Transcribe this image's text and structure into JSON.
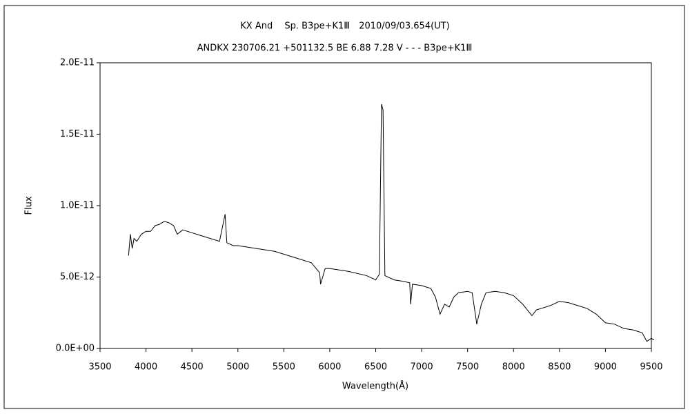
{
  "chart_data": {
    "type": "line",
    "title": "KX And　 Sp. B3pe+K1Ⅲ　2010/09/03.654(UT)",
    "subtitle": "ANDKX 230706.21 +501132.5 BE 6.88 7.28 V - - - B3pe+K1Ⅲ",
    "x_label": "Wavelength(Å)",
    "y_label": "Flux",
    "xlim": [
      3500,
      9500
    ],
    "xticks": [
      3500,
      4000,
      4500,
      5000,
      5500,
      6000,
      6500,
      7000,
      7500,
      8000,
      8500,
      9000,
      9500
    ],
    "ylim": [
      0,
      2e-11
    ],
    "yticks": [
      {
        "value": 0,
        "label": "0.0E+00"
      },
      {
        "value": 5e-12,
        "label": "5.0E-12"
      },
      {
        "value": 1e-11,
        "label": "1.0E-11"
      },
      {
        "value": 1.5e-11,
        "label": "1.5E-11"
      },
      {
        "value": 2e-11,
        "label": "2.0E-11"
      }
    ],
    "grid": false,
    "series": [
      {
        "color": "#000000",
        "x": [
          3810,
          3830,
          3850,
          3870,
          3900,
          3950,
          4000,
          4050,
          4100,
          4150,
          4200,
          4250,
          4300,
          4340,
          4400,
          4500,
          4600,
          4700,
          4800,
          4861,
          4880,
          4950,
          5000,
          5200,
          5400,
          5600,
          5800,
          5890,
          5900,
          5950,
          6000,
          6200,
          6400,
          6500,
          6540,
          6563,
          6580,
          6600,
          6700,
          6800,
          6870,
          6880,
          6900,
          7000,
          7100,
          7150,
          7200,
          7250,
          7300,
          7350,
          7400,
          7500,
          7550,
          7600,
          7650,
          7700,
          7800,
          7900,
          8000,
          8100,
          8200,
          8250,
          8300,
          8400,
          8500,
          8600,
          8700,
          8800,
          8900,
          9000,
          9100,
          9200,
          9300,
          9400,
          9450,
          9500,
          9530
        ],
        "values": [
          6.5e-12,
          8e-12,
          7e-12,
          7.7e-12,
          7.5e-12,
          8e-12,
          8.2e-12,
          8.2e-12,
          8.6e-12,
          8.7e-12,
          8.9e-12,
          8.8e-12,
          8.6e-12,
          8e-12,
          8.3e-12,
          8.1e-12,
          7.9e-12,
          7.7e-12,
          7.5e-12,
          9.4e-12,
          7.4e-12,
          7.2e-12,
          7.2e-12,
          7e-12,
          6.8e-12,
          6.4e-12,
          6e-12,
          5.3e-12,
          4.5e-12,
          5.6e-12,
          5.6e-12,
          5.4e-12,
          5.1e-12,
          4.8e-12,
          5.2e-12,
          1.71e-11,
          1.67e-11,
          5.1e-12,
          4.8e-12,
          4.7e-12,
          4.6e-12,
          3.1e-12,
          4.5e-12,
          4.4e-12,
          4.2e-12,
          3.6e-12,
          2.4e-12,
          3.1e-12,
          2.9e-12,
          3.6e-12,
          3.9e-12,
          4e-12,
          3.9e-12,
          1.7e-12,
          3.1e-12,
          3.9e-12,
          4e-12,
          3.9e-12,
          3.7e-12,
          3.1e-12,
          2.3e-12,
          2.7e-12,
          2.8e-12,
          3e-12,
          3.3e-12,
          3.2e-12,
          3e-12,
          2.8e-12,
          2.4e-12,
          1.8e-12,
          1.7e-12,
          1.4e-12,
          1.3e-12,
          1.1e-12,
          5e-13,
          7e-13,
          6e-13
        ]
      }
    ]
  }
}
